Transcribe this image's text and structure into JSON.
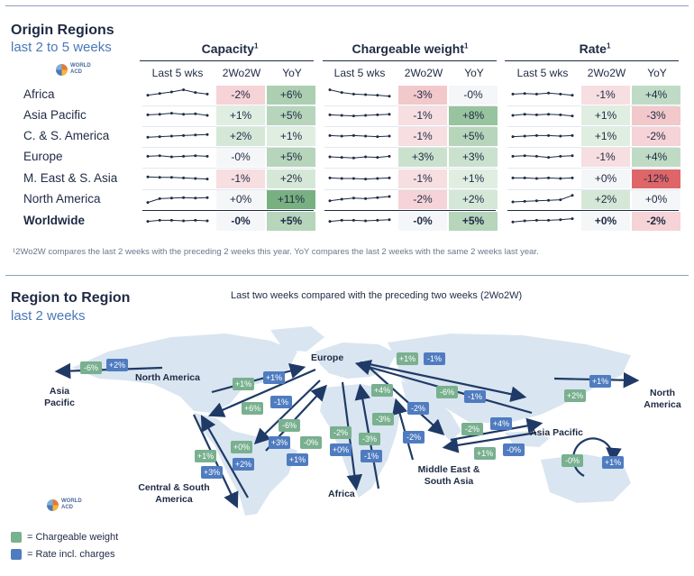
{
  "origin": {
    "title": "Origin Regions",
    "subtitle": "last 2 to 5 weeks",
    "logo_text": "WORLD ACD",
    "groups": [
      {
        "label": "Capacity",
        "sup": "1"
      },
      {
        "label": "Chargeable weight",
        "sup": "1"
      },
      {
        "label": "Rate",
        "sup": "1"
      }
    ],
    "col_headers": [
      "Last 5 wks",
      "2Wo2W",
      "YoY"
    ],
    "rows": [
      {
        "label": "Africa",
        "bold": false,
        "cap": [
          "-2%",
          "+6%"
        ],
        "cw": [
          "-3%",
          "-0%"
        ],
        "rate": [
          "-1%",
          "+4%"
        ],
        "cap_trend": [
          0.45,
          0.6,
          0.75,
          0.95,
          0.7,
          0.55
        ],
        "cw_trend": [
          0.95,
          0.7,
          0.55,
          0.5,
          0.45,
          0.35
        ],
        "rate_trend": [
          0.55,
          0.6,
          0.55,
          0.65,
          0.55,
          0.45
        ]
      },
      {
        "label": "Asia Pacific",
        "bold": false,
        "cap": [
          "+1%",
          "+5%"
        ],
        "cw": [
          "-1%",
          "+8%"
        ],
        "rate": [
          "+1%",
          "-3%"
        ],
        "cap_trend": [
          0.55,
          0.6,
          0.7,
          0.6,
          0.65,
          0.5
        ],
        "cw_trend": [
          0.55,
          0.5,
          0.45,
          0.5,
          0.55,
          0.6
        ],
        "rate_trend": [
          0.5,
          0.6,
          0.55,
          0.6,
          0.55,
          0.45
        ]
      },
      {
        "label": "C. & S. America",
        "bold": false,
        "cap": [
          "+2%",
          "+1%"
        ],
        "cw": [
          "-1%",
          "+5%"
        ],
        "rate": [
          "+1%",
          "-2%"
        ],
        "cap_trend": [
          0.4,
          0.45,
          0.5,
          0.55,
          0.6,
          0.65
        ],
        "cw_trend": [
          0.55,
          0.5,
          0.55,
          0.5,
          0.45,
          0.5
        ],
        "rate_trend": [
          0.45,
          0.5,
          0.55,
          0.55,
          0.5,
          0.55
        ]
      },
      {
        "label": "Europe",
        "bold": false,
        "cap": [
          "-0%",
          "+5%"
        ],
        "cw": [
          "+3%",
          "+3%"
        ],
        "rate": [
          "-1%",
          "+4%"
        ],
        "cap_trend": [
          0.55,
          0.6,
          0.5,
          0.55,
          0.6,
          0.55
        ],
        "cw_trend": [
          0.5,
          0.45,
          0.4,
          0.5,
          0.45,
          0.55
        ],
        "rate_trend": [
          0.55,
          0.6,
          0.55,
          0.45,
          0.55,
          0.6
        ]
      },
      {
        "label": "M. East & S. Asia",
        "bold": false,
        "cap": [
          "-1%",
          "+2%"
        ],
        "cw": [
          "-1%",
          "+1%"
        ],
        "rate": [
          "+0%",
          "-12%"
        ],
        "cap_trend": [
          0.65,
          0.6,
          0.6,
          0.55,
          0.5,
          0.45
        ],
        "cw_trend": [
          0.55,
          0.5,
          0.5,
          0.45,
          0.5,
          0.55
        ],
        "rate_trend": [
          0.55,
          0.55,
          0.5,
          0.55,
          0.5,
          0.55
        ]
      },
      {
        "label": "North America",
        "bold": false,
        "cap": [
          "+0%",
          "+11%"
        ],
        "cw": [
          "-2%",
          "+2%"
        ],
        "rate": [
          "+2%",
          "+0%"
        ],
        "cap_trend": [
          0.2,
          0.55,
          0.6,
          0.65,
          0.6,
          0.65
        ],
        "cw_trend": [
          0.35,
          0.5,
          0.6,
          0.55,
          0.65,
          0.75
        ],
        "rate_trend": [
          0.25,
          0.3,
          0.35,
          0.4,
          0.45,
          0.85
        ]
      },
      {
        "label": "Worldwide",
        "bold": true,
        "cap": [
          "-0%",
          "+5%"
        ],
        "cw": [
          "-0%",
          "+5%"
        ],
        "rate": [
          "+0%",
          "-2%"
        ],
        "cap_trend": [
          0.45,
          0.55,
          0.55,
          0.5,
          0.55,
          0.5
        ],
        "cw_trend": [
          0.45,
          0.55,
          0.55,
          0.5,
          0.55,
          0.6
        ],
        "rate_trend": [
          0.4,
          0.5,
          0.55,
          0.55,
          0.6,
          0.7
        ]
      }
    ],
    "footnote": "¹2Wo2W compares the last 2 weeks with the preceding 2 weeks this year. YoY compares the last 2 weeks with the same 2 weeks last year."
  },
  "region": {
    "title": "Region to Region",
    "subtitle": "last 2 weeks",
    "caption": "Last two weeks compared with the preceding two weeks (2Wo2W)",
    "logo_text": "WORLD ACD",
    "labels": {
      "asia_pacific_left": "Asia Pacific",
      "north_america": "North America",
      "europe": "Europe",
      "north_america_right": "North America",
      "asia_pacific_right": "Asia Pacific",
      "central_south_america": "Central & South America",
      "africa": "Africa",
      "middle_east": "Middle East & South Asia"
    },
    "badges": [
      {
        "id": "napac_c",
        "text": "-6%",
        "type": "c"
      },
      {
        "id": "napac_r",
        "text": "+2%",
        "type": "r"
      },
      {
        "id": "eu_na_c",
        "text": "+1%",
        "type": "c"
      },
      {
        "id": "eu_na_r",
        "text": "+1%",
        "type": "r"
      },
      {
        "id": "na_eu_c",
        "text": "+6%",
        "type": "c"
      },
      {
        "id": "na_eu_r",
        "text": "-1%",
        "type": "r"
      },
      {
        "id": "eu_apac_c",
        "text": "+1%",
        "type": "c"
      },
      {
        "id": "eu_apac_r",
        "text": "-1%",
        "type": "r"
      },
      {
        "id": "eu_me_c",
        "text": "+4%",
        "type": "c"
      },
      {
        "id": "eu_me_r",
        "text": "-2%",
        "type": "r"
      },
      {
        "id": "apac_eu_c",
        "text": "-6%",
        "type": "c"
      },
      {
        "id": "apac_eu_r",
        "text": "-1%",
        "type": "r"
      },
      {
        "id": "apac_na_c",
        "text": "+2%",
        "type": "c"
      },
      {
        "id": "apac_na_r",
        "text": "+1%",
        "type": "r"
      },
      {
        "id": "me_apac_c",
        "text": "-2%",
        "type": "c"
      },
      {
        "id": "me_apac_r",
        "text": "+4%",
        "type": "r"
      },
      {
        "id": "apac_me_c",
        "text": "+1%",
        "type": "c"
      },
      {
        "id": "apac_me_r",
        "text": "-0%",
        "type": "r"
      },
      {
        "id": "apac_intra_c",
        "text": "-0%",
        "type": "c"
      },
      {
        "id": "apac_intra_r",
        "text": "+1%",
        "type": "r"
      },
      {
        "id": "cs_eu_c",
        "text": "-6%",
        "type": "c"
      },
      {
        "id": "cs_eu_r",
        "text": "+3%",
        "type": "r"
      },
      {
        "id": "eu_cs_c",
        "text": "-0%",
        "type": "c"
      },
      {
        "id": "eu_cs_r",
        "text": "+1%",
        "type": "r"
      },
      {
        "id": "na_cs_c",
        "text": "+1%",
        "type": "c"
      },
      {
        "id": "na_cs_r",
        "text": "+3%",
        "type": "r"
      },
      {
        "id": "cs_na_c",
        "text": "+0%",
        "type": "c"
      },
      {
        "id": "cs_na_r",
        "text": "+2%",
        "type": "r"
      },
      {
        "id": "eu_af_c",
        "text": "-2%",
        "type": "c"
      },
      {
        "id": "eu_af_r",
        "text": "+0%",
        "type": "r"
      },
      {
        "id": "me_af_c",
        "text": "-3%",
        "type": "c"
      },
      {
        "id": "me_af_r",
        "text": "-1%",
        "type": "r"
      },
      {
        "id": "af_me_c",
        "text": "-3%",
        "type": "c"
      },
      {
        "id": "af_me_r",
        "text": "-2%",
        "type": "r"
      }
    ],
    "legend": [
      {
        "label": "= Chargeable weight",
        "color": "#79b08f"
      },
      {
        "label": "= Rate incl. charges",
        "color": "#4f7cc0"
      }
    ]
  }
}
